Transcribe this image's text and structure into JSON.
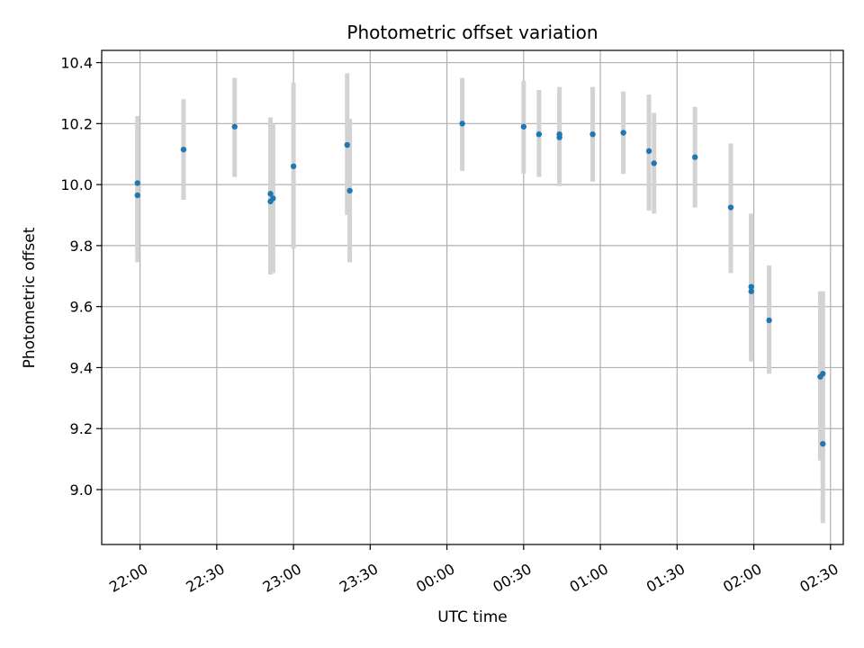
{
  "chart_data": {
    "type": "scatter",
    "title": "Photometric offset variation",
    "xlabel": "UTC time",
    "ylabel": "Photometric offset",
    "x_ticks": [
      "22:00",
      "22:30",
      "23:00",
      "23:30",
      "00:00",
      "00:30",
      "01:00",
      "01:30",
      "02:00",
      "02:30"
    ],
    "y_ticks": [
      "9.0",
      "9.2",
      "9.4",
      "9.6",
      "9.8",
      "10.0",
      "10.2",
      "10.4"
    ],
    "xlim": [
      "21:45",
      "02:35"
    ],
    "ylim": [
      8.82,
      10.44
    ],
    "grid": true,
    "colors": {
      "points": "#1f77b4",
      "error_bars": "#d3d3d3",
      "grid": "#b0b0b0"
    },
    "points": [
      {
        "x": "21:59",
        "y": 9.965,
        "yerr_low": 9.745,
        "yerr_high": 10.195
      },
      {
        "x": "21:59",
        "y": 10.005,
        "yerr_low": 9.78,
        "yerr_high": 10.225
      },
      {
        "x": "22:17",
        "y": 10.115,
        "yerr_low": 9.95,
        "yerr_high": 10.28
      },
      {
        "x": "22:37",
        "y": 10.19,
        "yerr_low": 10.025,
        "yerr_high": 10.35
      },
      {
        "x": "22:51",
        "y": 9.97,
        "yerr_low": 9.72,
        "yerr_high": 10.22
      },
      {
        "x": "22:51",
        "y": 9.945,
        "yerr_low": 9.705,
        "yerr_high": 10.215
      },
      {
        "x": "22:52",
        "y": 9.955,
        "yerr_low": 9.71,
        "yerr_high": 10.2
      },
      {
        "x": "23:00",
        "y": 10.06,
        "yerr_low": 9.79,
        "yerr_high": 10.335
      },
      {
        "x": "23:21",
        "y": 10.13,
        "yerr_low": 9.9,
        "yerr_high": 10.365
      },
      {
        "x": "23:22",
        "y": 9.98,
        "yerr_low": 9.745,
        "yerr_high": 10.215
      },
      {
        "x": "00:06",
        "y": 10.2,
        "yerr_low": 10.045,
        "yerr_high": 10.35
      },
      {
        "x": "00:30",
        "y": 10.19,
        "yerr_low": 10.035,
        "yerr_high": 10.34
      },
      {
        "x": "00:36",
        "y": 10.165,
        "yerr_low": 10.025,
        "yerr_high": 10.31
      },
      {
        "x": "00:44",
        "y": 10.155,
        "yerr_low": 9.995,
        "yerr_high": 10.32
      },
      {
        "x": "00:44",
        "y": 10.165,
        "yerr_low": 10.02,
        "yerr_high": 10.31
      },
      {
        "x": "00:57",
        "y": 10.165,
        "yerr_low": 10.01,
        "yerr_high": 10.32
      },
      {
        "x": "01:09",
        "y": 10.17,
        "yerr_low": 10.035,
        "yerr_high": 10.305
      },
      {
        "x": "01:19",
        "y": 10.11,
        "yerr_low": 9.915,
        "yerr_high": 10.295
      },
      {
        "x": "01:21",
        "y": 10.07,
        "yerr_low": 9.905,
        "yerr_high": 10.235
      },
      {
        "x": "01:37",
        "y": 10.09,
        "yerr_low": 9.925,
        "yerr_high": 10.255
      },
      {
        "x": "01:51",
        "y": 9.925,
        "yerr_low": 9.71,
        "yerr_high": 10.135
      },
      {
        "x": "01:59",
        "y": 9.665,
        "yerr_low": 9.43,
        "yerr_high": 9.9
      },
      {
        "x": "01:59",
        "y": 9.65,
        "yerr_low": 9.42,
        "yerr_high": 9.905
      },
      {
        "x": "02:06",
        "y": 9.555,
        "yerr_low": 9.38,
        "yerr_high": 9.735
      },
      {
        "x": "02:26",
        "y": 9.37,
        "yerr_low": 9.095,
        "yerr_high": 9.65
      },
      {
        "x": "02:27",
        "y": 9.38,
        "yerr_low": 9.11,
        "yerr_high": 9.65
      },
      {
        "x": "02:27",
        "y": 9.15,
        "yerr_low": 8.89,
        "yerr_high": 9.39
      }
    ]
  }
}
